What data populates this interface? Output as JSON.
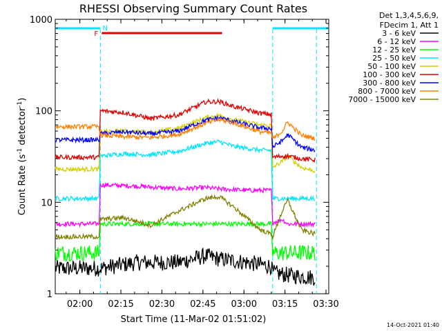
{
  "chart_data": {
    "type": "line",
    "title": "RHESSI Observing Summary Count Rates",
    "xlabel": "Start Time (11-Mar-02 01:51:02)",
    "ylabel": "Count Rate (s⁻¹ detector⁻¹)",
    "ylabel_parts": [
      "Count Rate (s",
      "-1",
      " detector",
      "-1",
      ")"
    ],
    "x_unit": "minutes since 01:51:02",
    "xlim": [
      0,
      100
    ],
    "ylim": [
      1,
      1000
    ],
    "yscale": "log",
    "grid": false,
    "legend_placement": "outside-right",
    "x_ticks": [
      {
        "v": 9,
        "label": "02:00"
      },
      {
        "v": 24,
        "label": "02:15"
      },
      {
        "v": 39,
        "label": "02:30"
      },
      {
        "v": 54,
        "label": "02:45"
      },
      {
        "v": 69,
        "label": "03:00"
      },
      {
        "v": 84,
        "label": "03:15"
      },
      {
        "v": 99,
        "label": "03:30"
      }
    ],
    "y_ticks": [
      {
        "v": 1,
        "label": "1"
      },
      {
        "v": 10,
        "label": "10"
      },
      {
        "v": 100,
        "label": "100"
      },
      {
        "v": 1000,
        "label": "1000"
      }
    ],
    "legend_header": [
      "Det 1,3,4,5,6,9,",
      "FDecim 1, Att 1"
    ],
    "timestamp": "14-Oct-2021 01:40",
    "markers": [
      {
        "label": "N",
        "x": [
          0,
          16.5
        ],
        "x2": [
          79.5,
          100
        ],
        "color": "#00e5ff"
      },
      {
        "label": "F",
        "x": [
          17,
          61
        ],
        "color": "#e00000"
      }
    ],
    "night_boundaries": [
      16.5,
      79.5,
      95.5
    ],
    "series": [
      {
        "name": "3 - 6 keV",
        "color": "#000000",
        "x": [
          0,
          16,
          16.5,
          30,
          45,
          55,
          60,
          70,
          79,
          79.5,
          85,
          95
        ],
        "y": [
          1.9,
          1.9,
          1.9,
          2.2,
          2.2,
          2.6,
          2.4,
          2.2,
          2.0,
          1.7,
          1.6,
          1.5
        ]
      },
      {
        "name": "6 - 12 keV",
        "color": "#ff00ff",
        "x": [
          0,
          16,
          16.5,
          30,
          45,
          55,
          60,
          70,
          79,
          79.5,
          83,
          85,
          95
        ],
        "y": [
          5.8,
          5.8,
          15.5,
          15,
          14,
          14.5,
          14,
          13.5,
          13.5,
          6,
          6.5,
          5.8,
          5.8
        ]
      },
      {
        "name": "12 - 25 keV",
        "color": "#00ff00",
        "x": [
          0,
          16,
          16.5,
          30,
          45,
          55,
          60,
          70,
          79,
          79.5,
          85,
          95
        ],
        "y": [
          2.8,
          2.8,
          5.8,
          5.8,
          5.8,
          5.8,
          5.8,
          5.8,
          5.8,
          2.8,
          2.8,
          2.8
        ]
      },
      {
        "name": "25 - 50 keV",
        "color": "#00e5ff",
        "x": [
          0,
          16,
          16.5,
          25,
          35,
          45,
          55,
          60,
          65,
          75,
          79,
          79.5,
          83,
          85,
          90,
          95
        ],
        "y": [
          11,
          11,
          32,
          34,
          33,
          36,
          44,
          46,
          41,
          37,
          37,
          11,
          11,
          11,
          11,
          11
        ]
      },
      {
        "name": "50 - 100 keV",
        "color": "#d4d000",
        "x": [
          0,
          16,
          16.5,
          25,
          35,
          45,
          55,
          60,
          65,
          75,
          79,
          79.5,
          83,
          85,
          90,
          95
        ],
        "y": [
          23,
          23,
          59,
          60,
          58,
          64,
          84,
          89,
          80,
          70,
          69,
          24,
          28,
          32,
          24,
          22
        ]
      },
      {
        "name": "100 - 300 keV",
        "color": "#e00000",
        "x": [
          0,
          16,
          16.5,
          25,
          35,
          45,
          55,
          60,
          65,
          75,
          79,
          79.5,
          83,
          85,
          90,
          95
        ],
        "y": [
          31,
          31,
          100,
          96,
          82,
          90,
          125,
          126,
          112,
          94,
          91,
          31,
          32,
          32,
          30,
          29
        ]
      },
      {
        "name": "300 - 800 keV",
        "color": "#0000ff",
        "x": [
          0,
          16,
          16.5,
          25,
          35,
          45,
          55,
          60,
          65,
          75,
          79,
          79.5,
          83,
          85,
          90,
          95
        ],
        "y": [
          48,
          48,
          56,
          59,
          56,
          60,
          79,
          84,
          77,
          65,
          64,
          40,
          47,
          55,
          40,
          37
        ]
      },
      {
        "name": "800 - 7000 keV",
        "color": "#ff8000",
        "x": [
          0,
          16,
          16.5,
          25,
          35,
          45,
          55,
          60,
          65,
          75,
          79,
          79.5,
          83,
          85,
          90,
          95
        ],
        "y": [
          67,
          67,
          54,
          52,
          51,
          55,
          73,
          80,
          74,
          59,
          57,
          49,
          60,
          75,
          54,
          50
        ]
      },
      {
        "name": "7000 - 15000 keV",
        "color": "#808000",
        "x": [
          0,
          16,
          16.5,
          25,
          35,
          45,
          55,
          60,
          65,
          75,
          79,
          79.5,
          83,
          85,
          90,
          95
        ],
        "y": [
          4.2,
          4.2,
          6.5,
          6.8,
          5.6,
          8,
          11,
          11.5,
          9,
          5,
          4.5,
          4.2,
          8,
          10.5,
          5,
          4.5
        ]
      }
    ]
  }
}
